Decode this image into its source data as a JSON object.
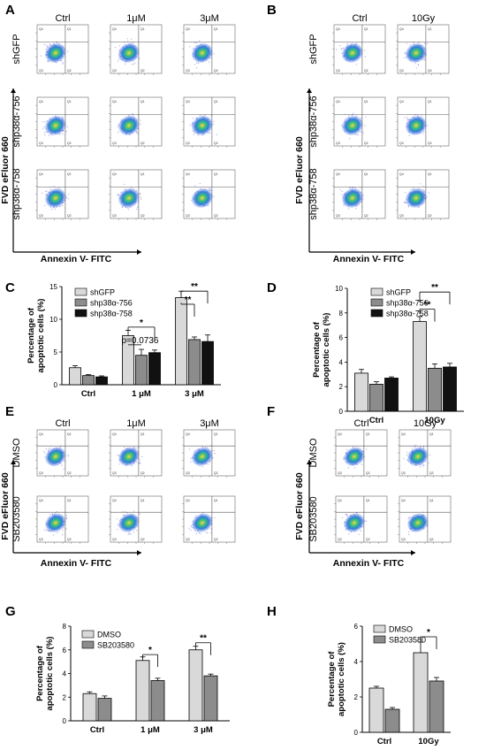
{
  "panels": {
    "A": {
      "label": "A",
      "columns": [
        "Ctrl",
        "1μM",
        "3μM"
      ],
      "rows": [
        "shGFP",
        "shp38α-756",
        "shp38α-758"
      ],
      "y_label": "FVD eFluor 660",
      "x_label": "Annexin V- FITC"
    },
    "B": {
      "label": "B",
      "columns": [
        "Ctrl",
        "10Gy"
      ],
      "rows": [
        "shGFP",
        "shp38α-756",
        "shp38α-758"
      ],
      "y_label": "FVD eFluor 660",
      "x_label": "Annexin V- FITC"
    },
    "E": {
      "label": "E",
      "columns": [
        "Ctrl",
        "1μM",
        "3μM"
      ],
      "rows": [
        "DMSO",
        "SB203580"
      ],
      "y_label": "FVD eFluor 660",
      "x_label": "Annexin V- FITC"
    },
    "F": {
      "label": "F",
      "columns": [
        "Ctrl",
        "10Gy"
      ],
      "rows": [
        "DMSO",
        "SB203580"
      ],
      "y_label": "FVD eFluor 660",
      "x_label": "Annexin V- FITC"
    }
  },
  "chart_data": [
    {
      "panel": "C",
      "type": "bar",
      "ylabel": "Percentage of apoptotic cells (%)",
      "ylim": [
        0,
        15
      ],
      "yticks": [
        0,
        5,
        10,
        15
      ],
      "categories": [
        "Ctrl",
        "1 μM",
        "3 μM"
      ],
      "series": [
        {
          "name": "shGFP",
          "color": "#d9d9d9",
          "values": [
            2.6,
            7.5,
            13.3
          ],
          "errors": [
            0.3,
            0.8,
            1.0
          ]
        },
        {
          "name": "shp38α-756",
          "color": "#8c8c8c",
          "values": [
            1.4,
            4.5,
            6.9
          ],
          "errors": [
            0.15,
            0.9,
            0.4
          ]
        },
        {
          "name": "shp38α-758",
          "color": "#111111",
          "values": [
            1.2,
            4.9,
            6.6
          ],
          "errors": [
            0.15,
            0.4,
            1.0
          ]
        }
      ],
      "annotations": [
        "*",
        "p=0.0736",
        "**",
        "**"
      ]
    },
    {
      "panel": "D",
      "type": "bar",
      "ylabel": "Percentage of apoptotic cells (%)",
      "ylim": [
        0,
        10
      ],
      "yticks": [
        0,
        2,
        4,
        6,
        8,
        10
      ],
      "categories": [
        "Ctrl",
        "10Gy"
      ],
      "series": [
        {
          "name": "shGFP",
          "color": "#d9d9d9",
          "values": [
            3.1,
            7.3
          ],
          "errors": [
            0.3,
            0.4
          ]
        },
        {
          "name": "shp38α-756",
          "color": "#8c8c8c",
          "values": [
            2.2,
            3.5
          ],
          "errors": [
            0.2,
            0.35
          ]
        },
        {
          "name": "shp38α-758",
          "color": "#111111",
          "values": [
            2.7,
            3.6
          ],
          "errors": [
            0.1,
            0.3
          ]
        }
      ],
      "annotations": [
        "**",
        "**"
      ]
    },
    {
      "panel": "G",
      "type": "bar",
      "ylabel": "Percentage of apoptotic cells (%)",
      "ylim": [
        0,
        8
      ],
      "yticks": [
        0,
        2,
        4,
        6,
        8
      ],
      "categories": [
        "Ctrl",
        "1 μM",
        "3 μM"
      ],
      "series": [
        {
          "name": "DMSO",
          "color": "#d9d9d9",
          "values": [
            2.3,
            5.1,
            6.0
          ],
          "errors": [
            0.15,
            0.3,
            0.3
          ]
        },
        {
          "name": "SB203580",
          "color": "#8c8c8c",
          "values": [
            1.9,
            3.4,
            3.8
          ],
          "errors": [
            0.2,
            0.2,
            0.15
          ]
        }
      ],
      "annotations": [
        "*",
        "**"
      ]
    },
    {
      "panel": "H",
      "type": "bar",
      "ylabel": "Percentage of apoptotic cells (%)",
      "ylim": [
        0,
        6
      ],
      "yticks": [
        0,
        2,
        4,
        6
      ],
      "categories": [
        "Ctrl",
        "10Gy"
      ],
      "series": [
        {
          "name": "DMSO",
          "color": "#d9d9d9",
          "values": [
            2.5,
            4.5
          ],
          "errors": [
            0.1,
            0.6
          ]
        },
        {
          "name": "SB203580",
          "color": "#8c8c8c",
          "values": [
            1.3,
            2.9
          ],
          "errors": [
            0.1,
            0.2
          ]
        }
      ],
      "annotations": [
        "*"
      ]
    }
  ],
  "flow_quadrant_labels": [
    "Q4",
    "Q1",
    "Q3",
    "Q2"
  ]
}
